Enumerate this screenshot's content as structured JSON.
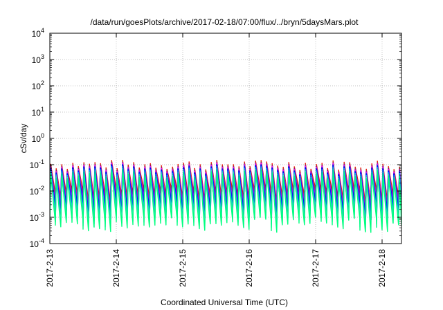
{
  "chart_data": {
    "type": "line",
    "title": "/data/run/goesPlots/archive/2017-02-18/07:00/flux/../bryn/5daysMars.plot",
    "xlabel": "Coordinated Universal Time (UTC)",
    "ylabel": "cSv/day",
    "y_scale": "log",
    "ylim": [
      0.0001,
      10000
    ],
    "y_ticks": [
      {
        "base": "10",
        "exp": "-4"
      },
      {
        "base": "10",
        "exp": "-3"
      },
      {
        "base": "10",
        "exp": "-2"
      },
      {
        "base": "10",
        "exp": "-1"
      },
      {
        "base": "10",
        "exp": "0"
      },
      {
        "base": "10",
        "exp": "1"
      },
      {
        "base": "10",
        "exp": "2"
      },
      {
        "base": "10",
        "exp": "3"
      },
      {
        "base": "10",
        "exp": "4"
      }
    ],
    "x_range": [
      "2017-02-13",
      "2017-02-18 07:00"
    ],
    "x_ticks": [
      "2017-2-13",
      "2017-2-14",
      "2017-2-15",
      "2017-2-16",
      "2017-2-17",
      "2017-2-18"
    ],
    "grid": true,
    "pattern": {
      "description_values": "sawtooth repeating about every 2 hours",
      "period_hours": 2,
      "peak_min": 0.06,
      "peak_max": 0.15,
      "trough_min": 0.001,
      "trough_max": 0.004
    },
    "series_colors": [
      "#ff0000",
      "#a0522d",
      "#800080",
      "#ff00ff",
      "#3a3acc",
      "#0000ff",
      "#00bfff",
      "#20b2aa",
      "#40e0d0",
      "#00ff7f"
    ]
  }
}
